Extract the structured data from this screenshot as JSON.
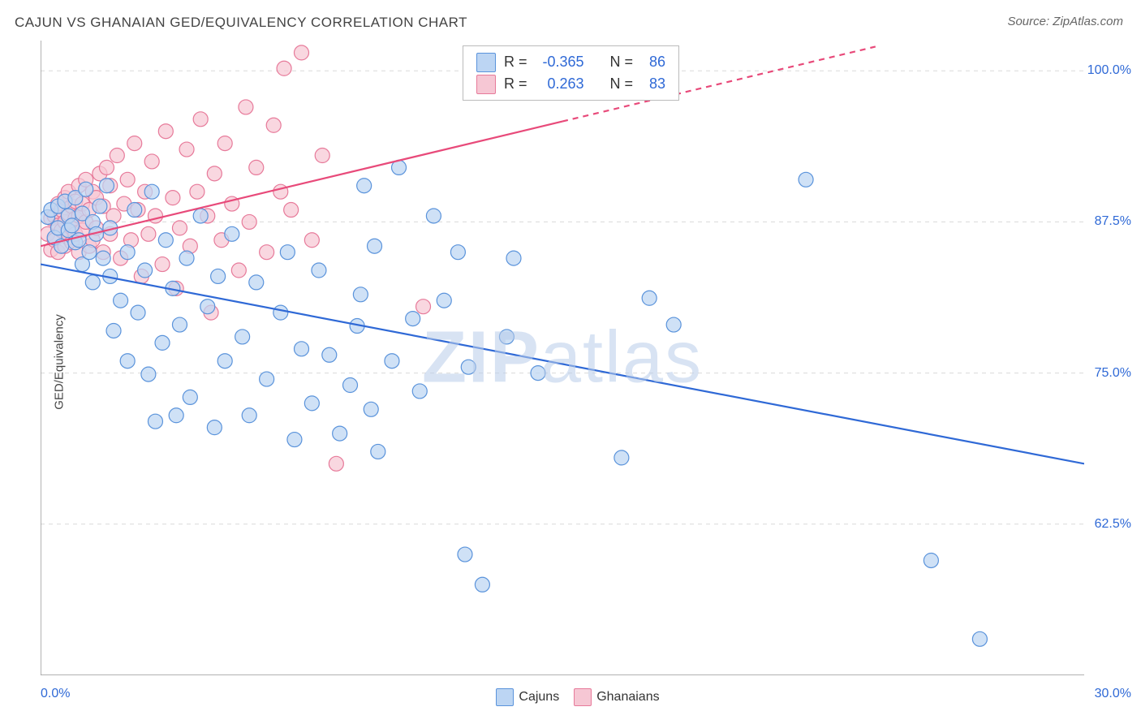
{
  "title": "CAJUN VS GHANAIAN GED/EQUIVALENCY CORRELATION CHART",
  "source": "Source: ZipAtlas.com",
  "ylabel": "GED/Equivalency",
  "watermark_a": "ZIP",
  "watermark_b": "atlas",
  "chart": {
    "type": "scatter",
    "xlim": [
      0,
      30
    ],
    "ylim": [
      50,
      102.5
    ],
    "xticks": [
      0,
      3,
      6,
      9,
      12,
      15,
      18,
      21,
      24,
      27,
      30
    ],
    "xtick_labels": {
      "0": "0.0%",
      "30": "30.0%"
    },
    "yticks": [
      62.5,
      75.0,
      87.5,
      100.0
    ],
    "ytick_labels": [
      "62.5%",
      "75.0%",
      "87.5%",
      "100.0%"
    ],
    "grid_color": "#d9d9d9",
    "axis_color": "#999999",
    "tick_color": "#999999",
    "label_color": "#2f69d6",
    "background_color": "#ffffff",
    "marker_radius": 9,
    "marker_stroke_width": 1.2,
    "line_width": 2.2,
    "series": [
      {
        "name": "Cajuns",
        "fill": "#bcd5f3",
        "stroke": "#5a93db",
        "line_color": "#2f69d6",
        "R": -0.365,
        "N": 86,
        "trend": {
          "x1": 0,
          "y1": 84.0,
          "x2": 30,
          "y2": 67.5,
          "dash_after_x": null
        },
        "points": [
          [
            0.2,
            87.9
          ],
          [
            0.3,
            88.5
          ],
          [
            0.4,
            86.2
          ],
          [
            0.5,
            87.0
          ],
          [
            0.5,
            88.8
          ],
          [
            0.6,
            85.5
          ],
          [
            0.7,
            89.2
          ],
          [
            0.8,
            86.8
          ],
          [
            0.8,
            88.0
          ],
          [
            0.9,
            87.2
          ],
          [
            1.0,
            85.8
          ],
          [
            1.0,
            89.5
          ],
          [
            1.1,
            86.0
          ],
          [
            1.2,
            88.2
          ],
          [
            1.2,
            84.0
          ],
          [
            1.3,
            90.2
          ],
          [
            1.4,
            85.0
          ],
          [
            1.5,
            87.5
          ],
          [
            1.5,
            82.5
          ],
          [
            1.6,
            86.5
          ],
          [
            1.7,
            88.8
          ],
          [
            1.8,
            84.5
          ],
          [
            1.9,
            90.5
          ],
          [
            2.0,
            87.0
          ],
          [
            2.0,
            83.0
          ],
          [
            2.1,
            78.5
          ],
          [
            2.3,
            81.0
          ],
          [
            2.5,
            85.0
          ],
          [
            2.5,
            76.0
          ],
          [
            2.7,
            88.5
          ],
          [
            2.8,
            80.0
          ],
          [
            3.0,
            83.5
          ],
          [
            3.1,
            74.9
          ],
          [
            3.2,
            90.0
          ],
          [
            3.3,
            71.0
          ],
          [
            3.5,
            77.5
          ],
          [
            3.6,
            86.0
          ],
          [
            3.8,
            82.0
          ],
          [
            3.9,
            71.5
          ],
          [
            4.0,
            79.0
          ],
          [
            4.2,
            84.5
          ],
          [
            4.3,
            73.0
          ],
          [
            4.6,
            88.0
          ],
          [
            4.8,
            80.5
          ],
          [
            5.0,
            70.5
          ],
          [
            5.1,
            83.0
          ],
          [
            5.3,
            76.0
          ],
          [
            5.5,
            86.5
          ],
          [
            5.8,
            78.0
          ],
          [
            6.0,
            71.5
          ],
          [
            6.2,
            82.5
          ],
          [
            6.5,
            74.5
          ],
          [
            6.9,
            80.0
          ],
          [
            7.1,
            85.0
          ],
          [
            7.3,
            69.5
          ],
          [
            7.5,
            77.0
          ],
          [
            7.8,
            72.5
          ],
          [
            8.0,
            83.5
          ],
          [
            8.3,
            76.5
          ],
          [
            8.6,
            70.0
          ],
          [
            8.9,
            74.0
          ],
          [
            9.1,
            78.9
          ],
          [
            9.2,
            81.5
          ],
          [
            9.3,
            90.5
          ],
          [
            9.5,
            72.0
          ],
          [
            9.6,
            85.5
          ],
          [
            9.7,
            68.5
          ],
          [
            10.1,
            76.0
          ],
          [
            10.3,
            92.0
          ],
          [
            10.7,
            79.5
          ],
          [
            10.9,
            73.5
          ],
          [
            11.3,
            88.0
          ],
          [
            11.6,
            81.0
          ],
          [
            12.0,
            85.0
          ],
          [
            12.2,
            60.0
          ],
          [
            12.3,
            75.5
          ],
          [
            12.7,
            57.5
          ],
          [
            13.4,
            78.0
          ],
          [
            13.6,
            84.5
          ],
          [
            14.3,
            75.0
          ],
          [
            16.7,
            68.0
          ],
          [
            17.5,
            81.2
          ],
          [
            18.2,
            79.0
          ],
          [
            22.0,
            91.0
          ],
          [
            25.6,
            59.5
          ],
          [
            27.0,
            53.0
          ]
        ]
      },
      {
        "name": "Ghanaians",
        "fill": "#f6c7d4",
        "stroke": "#e77a9a",
        "line_color": "#e84a7a",
        "R": 0.263,
        "N": 83,
        "trend": {
          "x1": 0,
          "y1": 85.5,
          "x2": 24,
          "y2": 102.0,
          "dash_after_x": 15.0
        },
        "points": [
          [
            0.2,
            86.5
          ],
          [
            0.3,
            87.8
          ],
          [
            0.3,
            85.2
          ],
          [
            0.4,
            88.0
          ],
          [
            0.4,
            86.0
          ],
          [
            0.5,
            87.2
          ],
          [
            0.5,
            89.0
          ],
          [
            0.5,
            85.0
          ],
          [
            0.6,
            88.5
          ],
          [
            0.6,
            86.8
          ],
          [
            0.7,
            87.5
          ],
          [
            0.7,
            89.5
          ],
          [
            0.7,
            85.5
          ],
          [
            0.8,
            88.2
          ],
          [
            0.8,
            86.2
          ],
          [
            0.8,
            90.0
          ],
          [
            0.9,
            87.0
          ],
          [
            0.9,
            88.8
          ],
          [
            0.9,
            85.8
          ],
          [
            1.0,
            89.2
          ],
          [
            1.0,
            86.5
          ],
          [
            1.0,
            87.8
          ],
          [
            1.1,
            90.5
          ],
          [
            1.1,
            85.0
          ],
          [
            1.1,
            88.0
          ],
          [
            1.2,
            86.8
          ],
          [
            1.2,
            89.0
          ],
          [
            1.3,
            87.5
          ],
          [
            1.3,
            91.0
          ],
          [
            1.4,
            85.5
          ],
          [
            1.4,
            88.5
          ],
          [
            1.5,
            90.0
          ],
          [
            1.5,
            86.0
          ],
          [
            1.6,
            89.5
          ],
          [
            1.6,
            87.0
          ],
          [
            1.7,
            91.5
          ],
          [
            1.8,
            85.0
          ],
          [
            1.8,
            88.8
          ],
          [
            1.9,
            92.0
          ],
          [
            2.0,
            86.5
          ],
          [
            2.0,
            90.5
          ],
          [
            2.1,
            88.0
          ],
          [
            2.2,
            93.0
          ],
          [
            2.3,
            84.5
          ],
          [
            2.4,
            89.0
          ],
          [
            2.5,
            91.0
          ],
          [
            2.6,
            86.0
          ],
          [
            2.7,
            94.0
          ],
          [
            2.8,
            88.5
          ],
          [
            2.9,
            83.0
          ],
          [
            3.0,
            90.0
          ],
          [
            3.1,
            86.5
          ],
          [
            3.2,
            92.5
          ],
          [
            3.3,
            88.0
          ],
          [
            3.5,
            84.0
          ],
          [
            3.6,
            95.0
          ],
          [
            3.8,
            89.5
          ],
          [
            3.9,
            82.0
          ],
          [
            4.0,
            87.0
          ],
          [
            4.2,
            93.5
          ],
          [
            4.3,
            85.5
          ],
          [
            4.5,
            90.0
          ],
          [
            4.6,
            96.0
          ],
          [
            4.8,
            88.0
          ],
          [
            4.9,
            80.0
          ],
          [
            5.0,
            91.5
          ],
          [
            5.2,
            86.0
          ],
          [
            5.3,
            94.0
          ],
          [
            5.5,
            89.0
          ],
          [
            5.7,
            83.5
          ],
          [
            5.9,
            97.0
          ],
          [
            6.0,
            87.5
          ],
          [
            6.2,
            92.0
          ],
          [
            6.5,
            85.0
          ],
          [
            6.7,
            95.5
          ],
          [
            6.9,
            90.0
          ],
          [
            7.0,
            100.2
          ],
          [
            7.2,
            88.5
          ],
          [
            7.5,
            101.5
          ],
          [
            7.8,
            86.0
          ],
          [
            8.1,
            93.0
          ],
          [
            8.5,
            67.5
          ],
          [
            11.0,
            80.5
          ]
        ]
      }
    ]
  },
  "stats_box": {
    "rows": [
      {
        "swatch_fill": "#bcd5f3",
        "swatch_stroke": "#5a93db",
        "r_label": "R =",
        "r_val": "-0.365",
        "n_label": "N =",
        "n_val": "86"
      },
      {
        "swatch_fill": "#f6c7d4",
        "swatch_stroke": "#e77a9a",
        "r_label": "R =",
        "r_val": "0.263",
        "n_label": "N =",
        "n_val": "83"
      }
    ]
  },
  "bottom_legend": [
    {
      "swatch_fill": "#bcd5f3",
      "swatch_stroke": "#5a93db",
      "label": "Cajuns"
    },
    {
      "swatch_fill": "#f6c7d4",
      "swatch_stroke": "#e77a9a",
      "label": "Ghanaians"
    }
  ]
}
